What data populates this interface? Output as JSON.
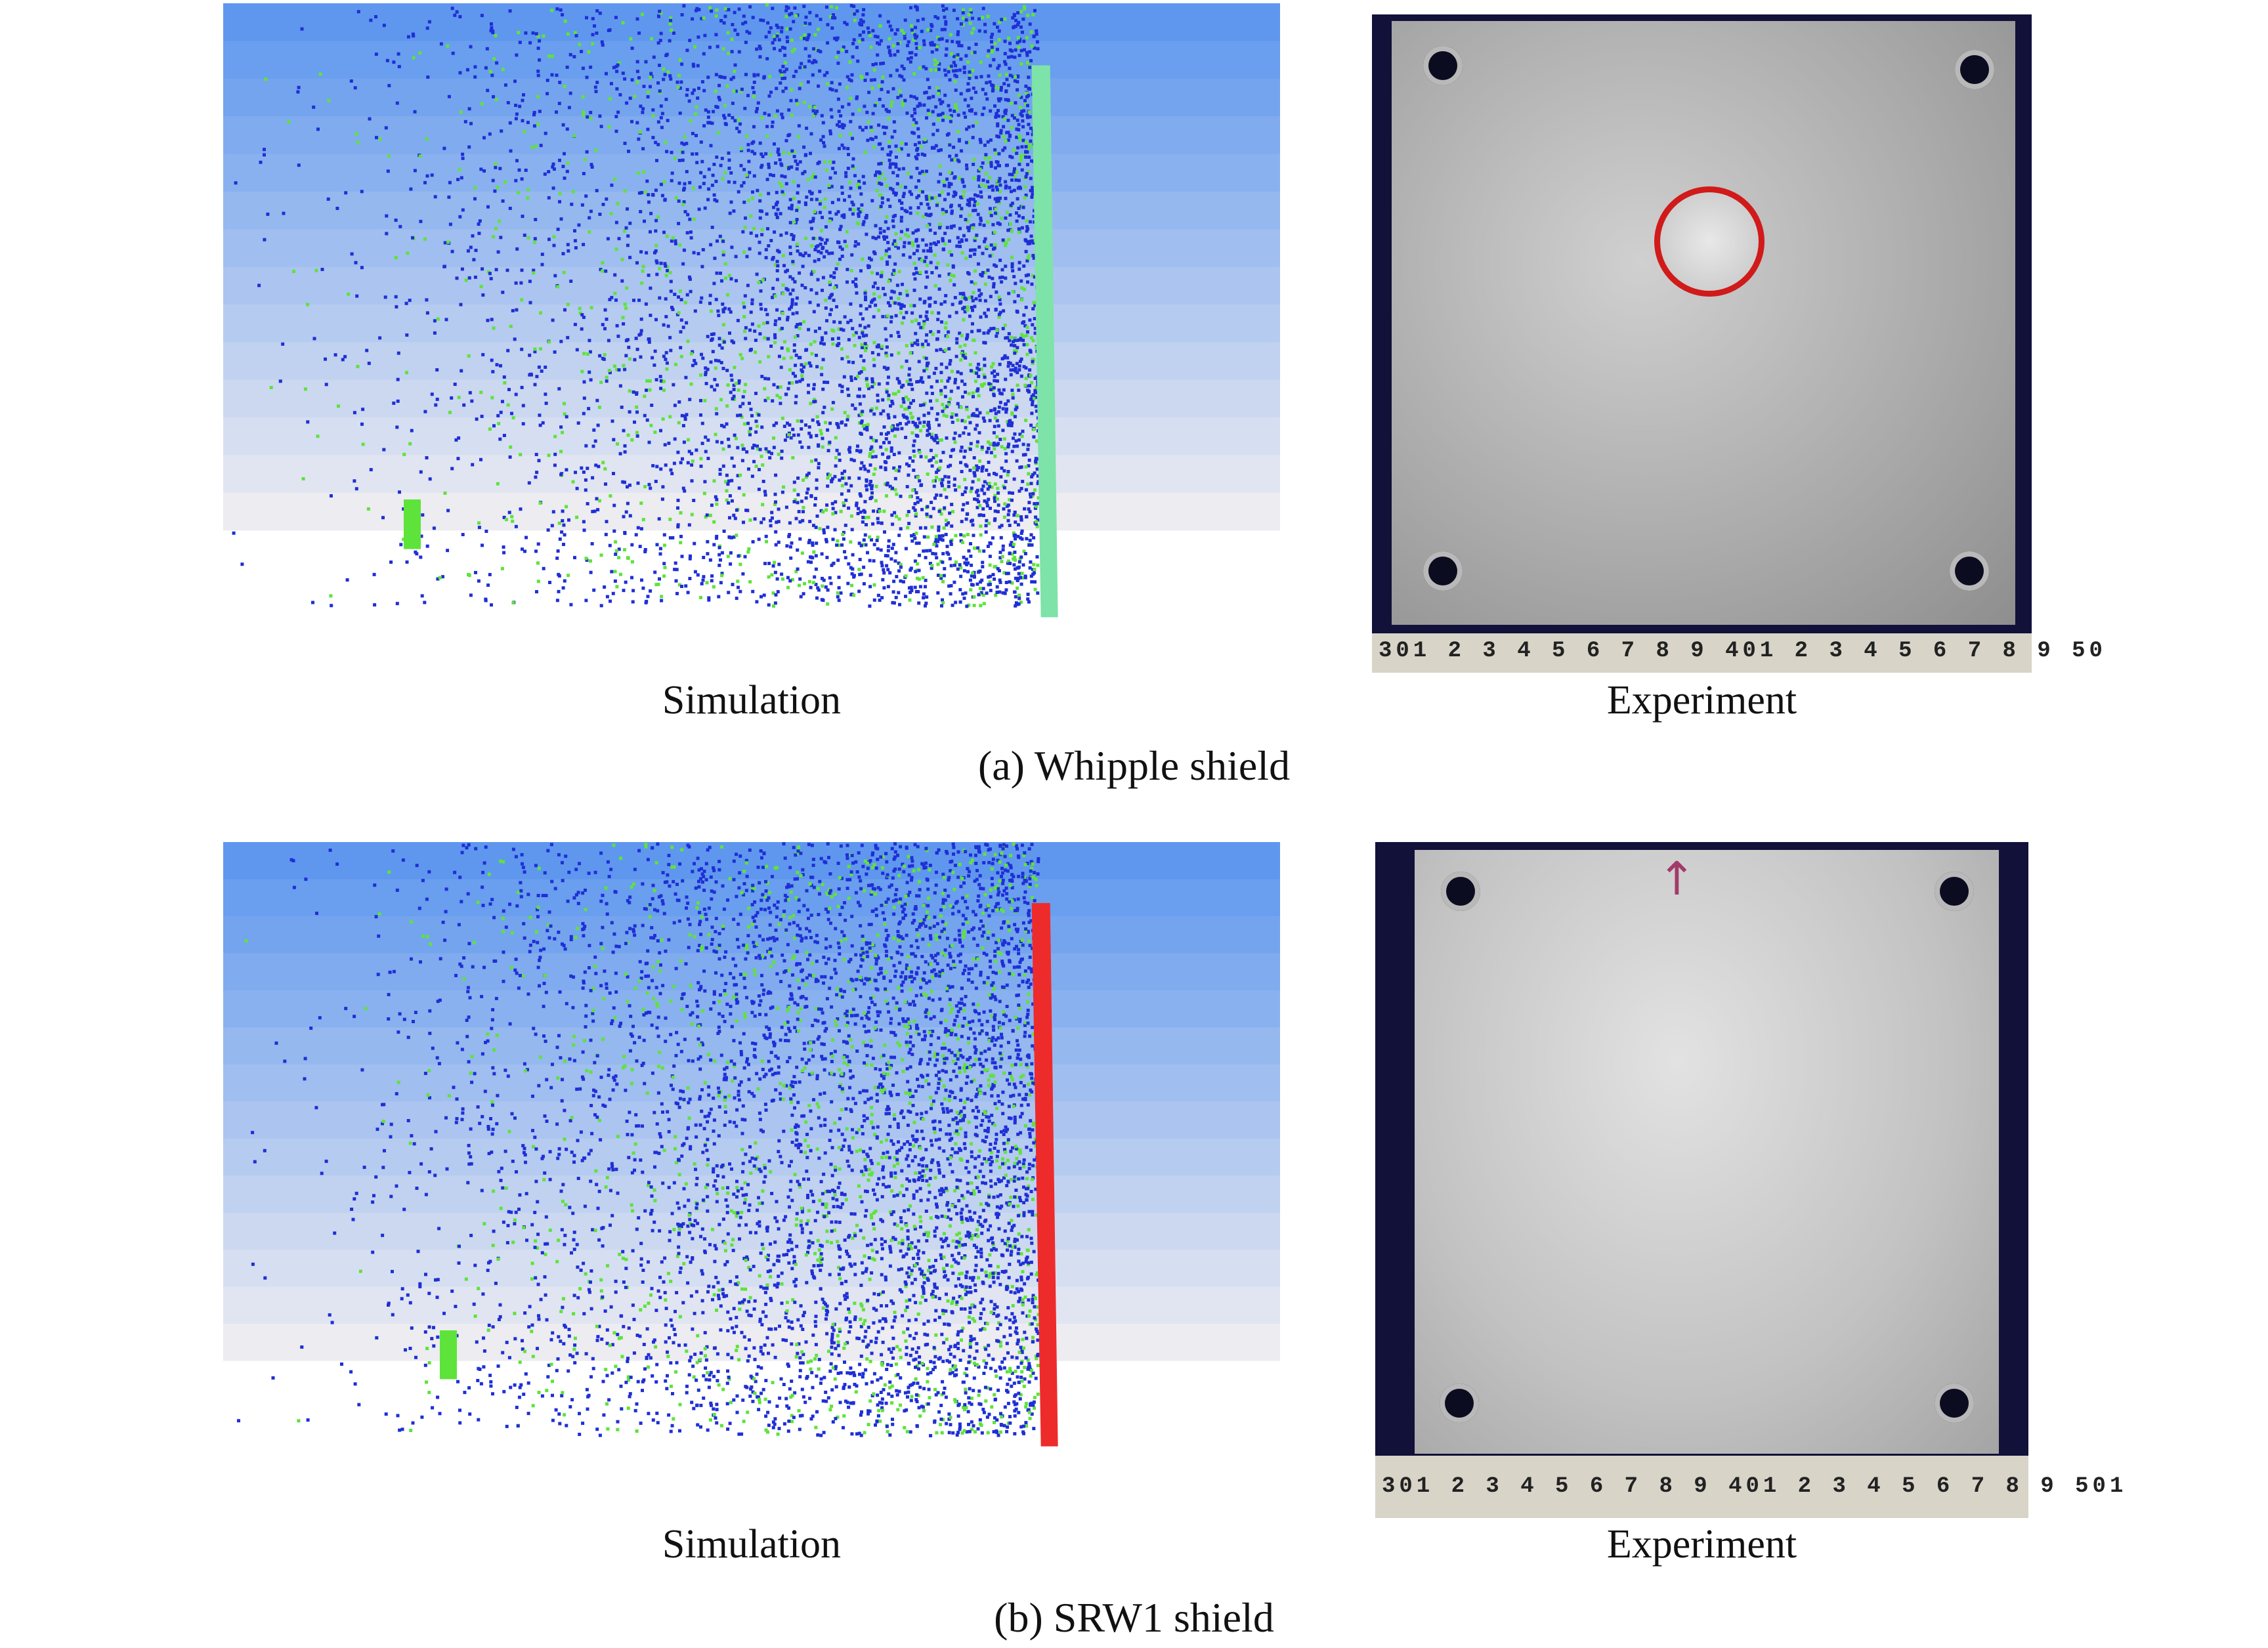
{
  "figure": {
    "rows": [
      {
        "id": "a",
        "subcaption": "(a) Whipple shield",
        "simulation_caption": "Simulation",
        "experiment_caption": "Experiment",
        "ruler_text": "301 2 3 4 5 6 7 8 9 401 2 3 4 5 6 7 8 9 50",
        "rear_wall_color": "#7de3a8",
        "perforated": true
      },
      {
        "id": "b",
        "subcaption": "(b) SRW1 shield",
        "simulation_caption": "Simulation",
        "experiment_caption": "Experiment",
        "ruler_text": "301 2 3 4 5 6 7 8 9 401 2 3 4 5 6 7 8 9 501",
        "rear_wall_color": "#ee2b2b",
        "perforated": false
      }
    ],
    "colors": {
      "debris_blue": "#1f2fd6",
      "debris_green": "#5ee33a",
      "background_top": "#5f97ee",
      "background_bottom": "#ececf1",
      "perforation_ring": "#d11a1a"
    }
  }
}
